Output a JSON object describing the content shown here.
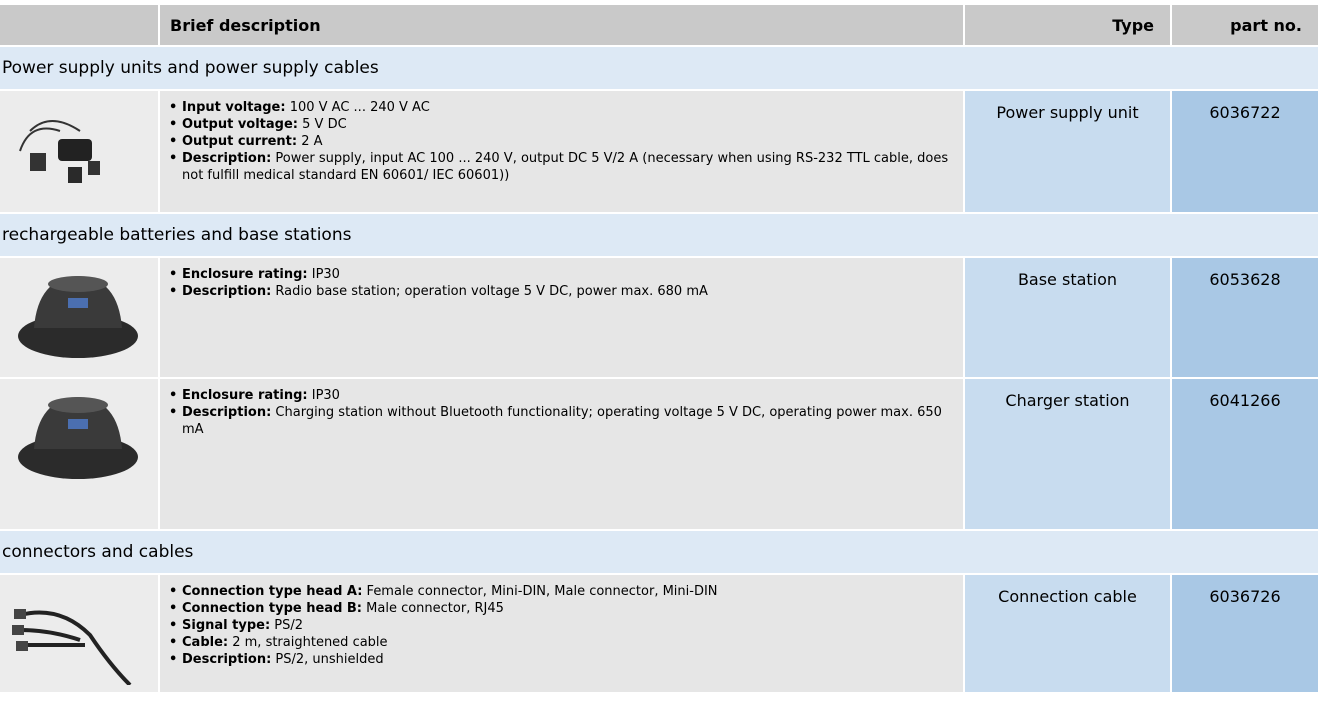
{
  "header": {
    "description": "Brief description",
    "type": "Type",
    "part_no": "part no."
  },
  "sections": [
    {
      "title": "Power supply units and power supply cables",
      "items": [
        {
          "specs": [
            {
              "label": "Input voltage:",
              "text": "100 V AC ... 240 V AC"
            },
            {
              "label": "Output voltage:",
              "text": "5 V DC"
            },
            {
              "label": "Output current:",
              "text": "2 A"
            },
            {
              "label": "Description:",
              "text": "Power supply, input AC 100 ... 240 V, output DC 5 V/2 A (necessary when using RS-232 TTL cable, does not fulfill medical standard EN 60601/ IEC 60601))"
            }
          ],
          "type": "Power supply unit",
          "part_no": "6036722"
        }
      ]
    },
    {
      "title": "rechargeable batteries and base stations",
      "items": [
        {
          "specs": [
            {
              "label": "Enclosure rating:",
              "text": "IP30"
            },
            {
              "label": "Description:",
              "text": "Radio base station; operation voltage 5 V DC, power max. 680 mA"
            }
          ],
          "type": "Base station",
          "part_no": "6053628"
        },
        {
          "specs": [
            {
              "label": "Enclosure rating:",
              "text": "IP30"
            },
            {
              "label": "Description:",
              "text": "Charging station without Bluetooth functionality; operating voltage 5 V DC, operating power max. 650 mA"
            }
          ],
          "type": "Charger station",
          "part_no": "6041266"
        }
      ]
    },
    {
      "title": "connectors and cables",
      "items": [
        {
          "specs": [
            {
              "label": "Connection type head A:",
              "text": "Female connector, Mini-DIN, Male connector, Mini-DIN"
            },
            {
              "label": "Connection type head B:",
              "text": "Male connector, RJ45"
            },
            {
              "label": "Signal type:",
              "text": "PS/2"
            },
            {
              "label": "Cable:",
              "text": "2 m, straightened cable"
            },
            {
              "label": "Description:",
              "text": "PS/2, unshielded"
            }
          ],
          "type": "Connection cable",
          "part_no": "6036726"
        }
      ]
    }
  ]
}
